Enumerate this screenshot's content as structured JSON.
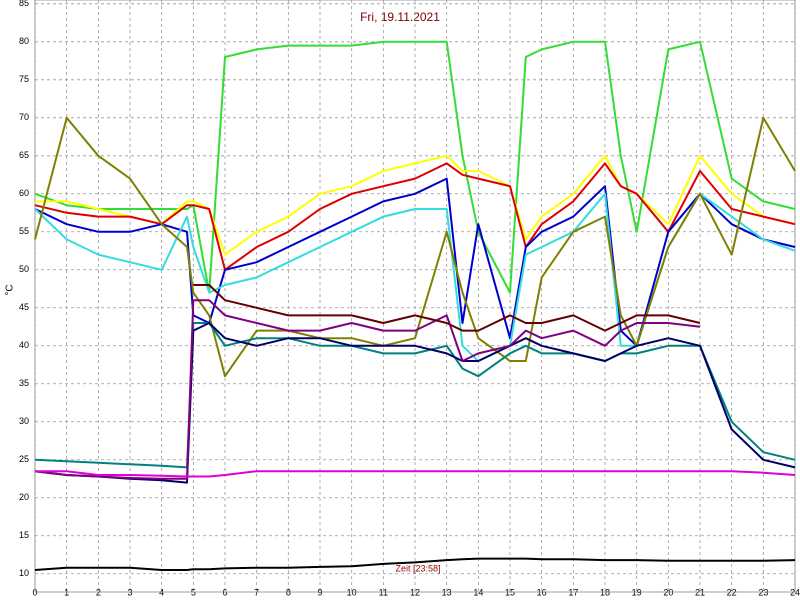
{
  "chart_data": {
    "type": "line",
    "title": "Fri, 19.11.2021",
    "y_label": "°C",
    "annotation": "Zeit [23:58]",
    "x": [
      0,
      1,
      2,
      3,
      4,
      4.8,
      5,
      5.5,
      6,
      7,
      8,
      9,
      10,
      11,
      12,
      13,
      13.5,
      14,
      15,
      15.5,
      16,
      17,
      18,
      18.5,
      19,
      20,
      21,
      22,
      23,
      24
    ],
    "xlim": [
      0,
      24
    ],
    "xticks": [
      0,
      1,
      2,
      3,
      4,
      5,
      6,
      7,
      8,
      9,
      10,
      11,
      12,
      13,
      14,
      15,
      16,
      17,
      18,
      19,
      20,
      21,
      22,
      23,
      24
    ],
    "ylim": [
      7.6,
      85.5
    ],
    "yticks": [
      10,
      15,
      20,
      25,
      30,
      35,
      40,
      45,
      50,
      55,
      60,
      65,
      70,
      75,
      80,
      85
    ],
    "grid": true,
    "series": [
      {
        "color": "#33dd33",
        "values": [
          60,
          58.5,
          58,
          58,
          58,
          58,
          58.5,
          47,
          78,
          79,
          79.5,
          79.5,
          79.5,
          80,
          80,
          80,
          65,
          55,
          47,
          78,
          79,
          80,
          80,
          65,
          55,
          79,
          80,
          62,
          59,
          58
        ]
      },
      {
        "color": "#ffff00",
        "values": [
          59,
          59,
          58,
          57,
          56,
          59,
          59,
          58,
          52,
          55,
          57,
          60,
          61,
          63,
          64,
          65,
          63,
          63,
          61,
          54,
          57,
          60,
          65,
          61,
          60,
          56,
          65,
          60,
          57,
          56
        ]
      },
      {
        "color": "#dd0000",
        "values": [
          58.5,
          57.5,
          57,
          57,
          56,
          58.5,
          58.5,
          58,
          50,
          53,
          55,
          58,
          60,
          61,
          62,
          64,
          62.5,
          62,
          61,
          53,
          56,
          59,
          64,
          61,
          60,
          55,
          63,
          58,
          57,
          56
        ]
      },
      {
        "color": "#0000cc",
        "values": [
          58,
          56,
          55,
          55,
          56,
          55,
          44,
          43,
          50,
          51,
          53,
          55,
          57,
          59,
          60,
          62,
          43,
          56,
          41,
          53,
          55,
          57,
          61,
          42,
          40,
          55,
          60,
          56,
          54,
          53
        ]
      },
      {
        "color": "#33dddd",
        "values": [
          58,
          54,
          52,
          51,
          50,
          57,
          53,
          47,
          48,
          49,
          51,
          53,
          55,
          57,
          58,
          58,
          40,
          38,
          40,
          52,
          53,
          55,
          60,
          40,
          40,
          53,
          60,
          57,
          54,
          52.5
        ]
      },
      {
        "color": "#808000",
        "values": [
          54,
          70,
          65,
          62,
          56,
          53,
          47,
          44,
          36,
          42,
          42,
          41,
          41,
          40,
          41,
          55,
          47,
          41,
          38,
          38,
          49,
          55,
          57,
          44,
          40,
          53,
          60,
          52,
          70,
          63
        ]
      },
      {
        "color": "#008080",
        "values": [
          25,
          24.8,
          24.6,
          24.4,
          24.2,
          24,
          43,
          43,
          40,
          41,
          41,
          40,
          40,
          39,
          39,
          40,
          37,
          36,
          39,
          40,
          39,
          39,
          38,
          39,
          39,
          40,
          40,
          30,
          26,
          25
        ]
      },
      {
        "color": "#000066",
        "values": [
          23.5,
          23,
          22.8,
          22.5,
          22.3,
          22,
          42,
          43,
          41,
          40,
          41,
          41,
          40,
          40,
          40,
          39,
          38,
          38,
          40,
          41,
          40,
          39,
          38,
          39,
          40,
          41,
          40,
          29,
          25,
          24
        ]
      },
      {
        "color": "#800080",
        "values": [
          23.5,
          23,
          22.8,
          22.6,
          22.5,
          22.5,
          46,
          46,
          44,
          43,
          42,
          42,
          43,
          42,
          42,
          44,
          38,
          39,
          40,
          42,
          41,
          42,
          40,
          42,
          43,
          43,
          42.5,
          null,
          null,
          null
        ]
      },
      {
        "color": "#660000",
        "values": [
          null,
          null,
          null,
          null,
          null,
          null,
          48,
          48,
          46,
          45,
          44,
          44,
          44,
          43,
          44,
          43,
          42,
          42,
          44,
          43,
          43,
          44,
          42,
          43,
          44,
          44,
          43,
          null,
          null,
          null
        ]
      },
      {
        "color": "#dd00dd",
        "values": [
          23.5,
          23.5,
          23,
          23,
          22.9,
          22.8,
          22.8,
          22.8,
          23,
          23.5,
          23.5,
          23.5,
          23.5,
          23.5,
          23.5,
          23.5,
          23.5,
          23.5,
          23.5,
          23.5,
          23.5,
          23.5,
          23.5,
          23.5,
          23.5,
          23.5,
          23.5,
          23.5,
          23.3,
          23
        ]
      },
      {
        "color": "#000000",
        "values": [
          10.5,
          10.8,
          10.8,
          10.8,
          10.5,
          10.5,
          10.6,
          10.6,
          10.7,
          10.8,
          10.8,
          10.9,
          11,
          11.3,
          11.5,
          11.8,
          11.9,
          12,
          12,
          12,
          11.9,
          11.9,
          11.8,
          11.8,
          11.8,
          11.7,
          11.7,
          11.7,
          11.7,
          11.8
        ]
      }
    ]
  }
}
